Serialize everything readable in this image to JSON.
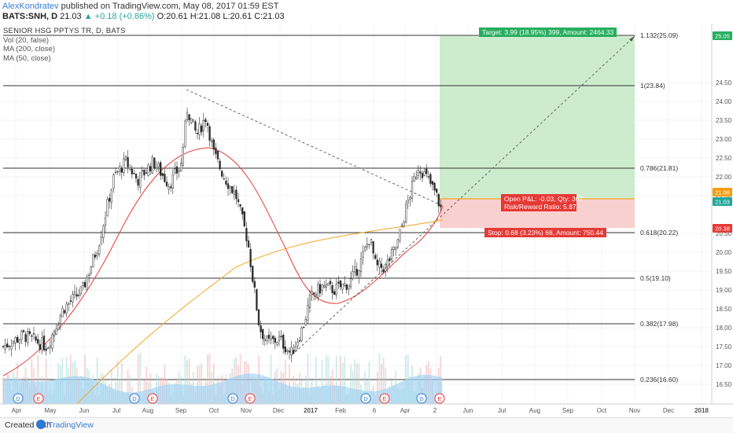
{
  "header": {
    "author": "AlexKondratev",
    "published": " published on TradingView.com, May 08, 2017 01:59 EST",
    "symbol": "BATS:SNH, D",
    "last": "21.03",
    "change": "▲ +0.18 (+0.86%)",
    "ohlc": "O:20.61 H:21.08 L:20.61 C:21.03"
  },
  "legend": {
    "instrument": "SENIOR HSG PPTYS TR, D, BATS",
    "vol": "Vol (20, false)",
    "ma200": "MA (200, close)",
    "ma50": "MA (50, close)"
  },
  "fib_labels": [
    "1.132(25.09)",
    "1(23.84)",
    "0.786(21.81)",
    "0.618(20.22)",
    "0.5(19.10)",
    "0.382(17.98)",
    "0.236(16.60)"
  ],
  "price_axis": [
    "24.50",
    "24.00",
    "23.50",
    "23.00",
    "22.50",
    "22.00",
    "21.50",
    "20.50",
    "20.00",
    "19.50",
    "19.00",
    "18.50",
    "18.00",
    "17.50",
    "17.00",
    "16.50"
  ],
  "price_tags": [
    {
      "text": "25.05",
      "color": "#27ae60"
    },
    {
      "text": "21.08",
      "color": "#f39c12"
    },
    {
      "text": "21.03",
      "color": "#26a69a"
    },
    {
      "text": "20.38",
      "color": "#e53935"
    }
  ],
  "time_axis": [
    "Apr",
    "May",
    "Jun",
    "Jul",
    "Aug",
    "Sep",
    "Oct",
    "Nov",
    "Dec",
    "2017",
    "Feb",
    "6",
    "Apr",
    "2",
    "Jun",
    "Jul",
    "Aug",
    "Sep",
    "Oct",
    "Nov",
    "Dec",
    "2018"
  ],
  "target_box": "Target: 3.99 (18.95%) 399, Amount: 2464.33",
  "pnl_box_line1": "Open P&L: -0.03, Qty: 367",
  "pnl_box_line2": "Risk/Reward Ratio: 5.87",
  "stop_box": "Stop: 0.68 (3.23%) 68, Amount: 750.44",
  "event_markers": [
    "D",
    "E",
    "D",
    "E",
    "D",
    "E",
    "D",
    "E",
    "D",
    "E"
  ],
  "footer": {
    "created": "Created with",
    "brand": "TradingView"
  },
  "colors": {
    "profit": "#27ae60",
    "loss": "#e53935",
    "ma50": "#e53935",
    "ma200": "#f5a623",
    "volume": "#7ec8f0",
    "candle": "#2c2c2c"
  }
}
